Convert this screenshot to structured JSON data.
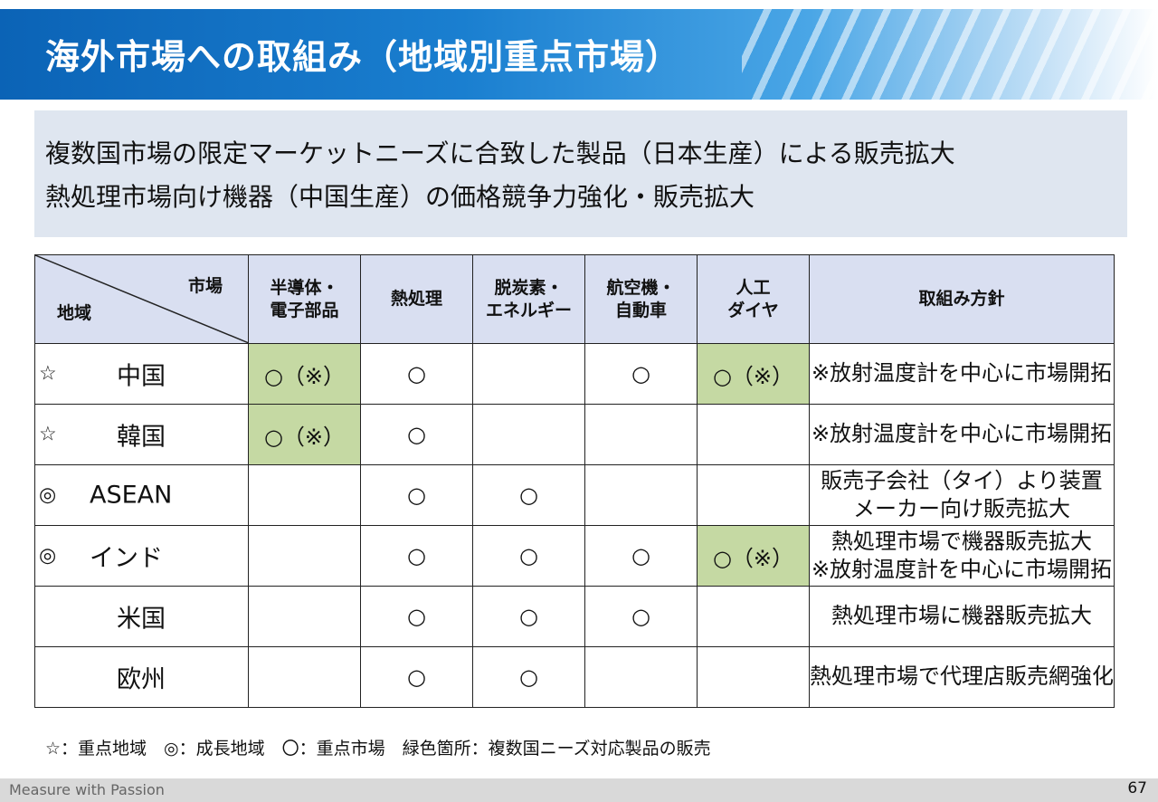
{
  "title": "海外市場への取組み（地域別重点市場）",
  "summary": [
    "複数国市場の限定マーケットニーズに合致した製品（日本生産）による販売拡大",
    "熱処理市場向け機器（中国生産）の価格競争力強化・販売拡大"
  ],
  "table": {
    "corner_market": "市場",
    "corner_region": "地域",
    "columns": [
      [
        "半導体・",
        "電子部品"
      ],
      [
        "熱処理"
      ],
      [
        "脱炭素・",
        "エネルギー"
      ],
      [
        "航空機・",
        "自動車"
      ],
      [
        "人工",
        "ダイヤ"
      ],
      [
        "取組み方針"
      ]
    ],
    "rows": [
      {
        "mark": "☆",
        "region": "中国",
        "cells": [
          "○（※）",
          "○",
          "",
          "○",
          "○（※）"
        ],
        "green": [
          true,
          false,
          false,
          false,
          true
        ],
        "policy": [
          "※放射温度計を中心に市場開拓"
        ]
      },
      {
        "mark": "☆",
        "region": "韓国",
        "cells": [
          "○（※）",
          "○",
          "",
          "",
          ""
        ],
        "green": [
          true,
          false,
          false,
          false,
          false
        ],
        "policy": [
          "※放射温度計を中心に市場開拓"
        ]
      },
      {
        "mark": "◎",
        "region": "ASEAN",
        "cells": [
          "",
          "○",
          "○",
          "",
          ""
        ],
        "green": [
          false,
          false,
          false,
          false,
          false
        ],
        "policy": [
          "販売子会社（タイ）より装置",
          "メーカー向け販売拡大"
        ]
      },
      {
        "mark": "◎",
        "region": "インド",
        "cells": [
          "",
          "○",
          "○",
          "○",
          "○（※）"
        ],
        "green": [
          false,
          false,
          false,
          false,
          true
        ],
        "policy": [
          "熱処理市場で機器販売拡大",
          "※放射温度計を中心に市場開拓"
        ]
      },
      {
        "mark": "",
        "region": "米国",
        "cells": [
          "",
          "○",
          "○",
          "○",
          ""
        ],
        "green": [
          false,
          false,
          false,
          false,
          false
        ],
        "policy": [
          "熱処理市場に機器販売拡大"
        ]
      },
      {
        "mark": "",
        "region": "欧州",
        "cells": [
          "",
          "○",
          "○",
          "",
          ""
        ],
        "green": [
          false,
          false,
          false,
          false,
          false
        ],
        "policy": [
          "熱処理市場で代理店販売網強化"
        ]
      }
    ]
  },
  "legend": "☆：重点地域　◎：成長地域　〇：重点市場　緑色箇所：複数国ニーズ対応製品の販売",
  "footer": {
    "slogan": "Measure with Passion",
    "page": "67"
  },
  "colors": {
    "header_blue": "#0b63b6",
    "summary_bg": "#dfe6f0",
    "table_header_bg": "#d9dff1",
    "highlight_green": "#c5d9a3"
  }
}
